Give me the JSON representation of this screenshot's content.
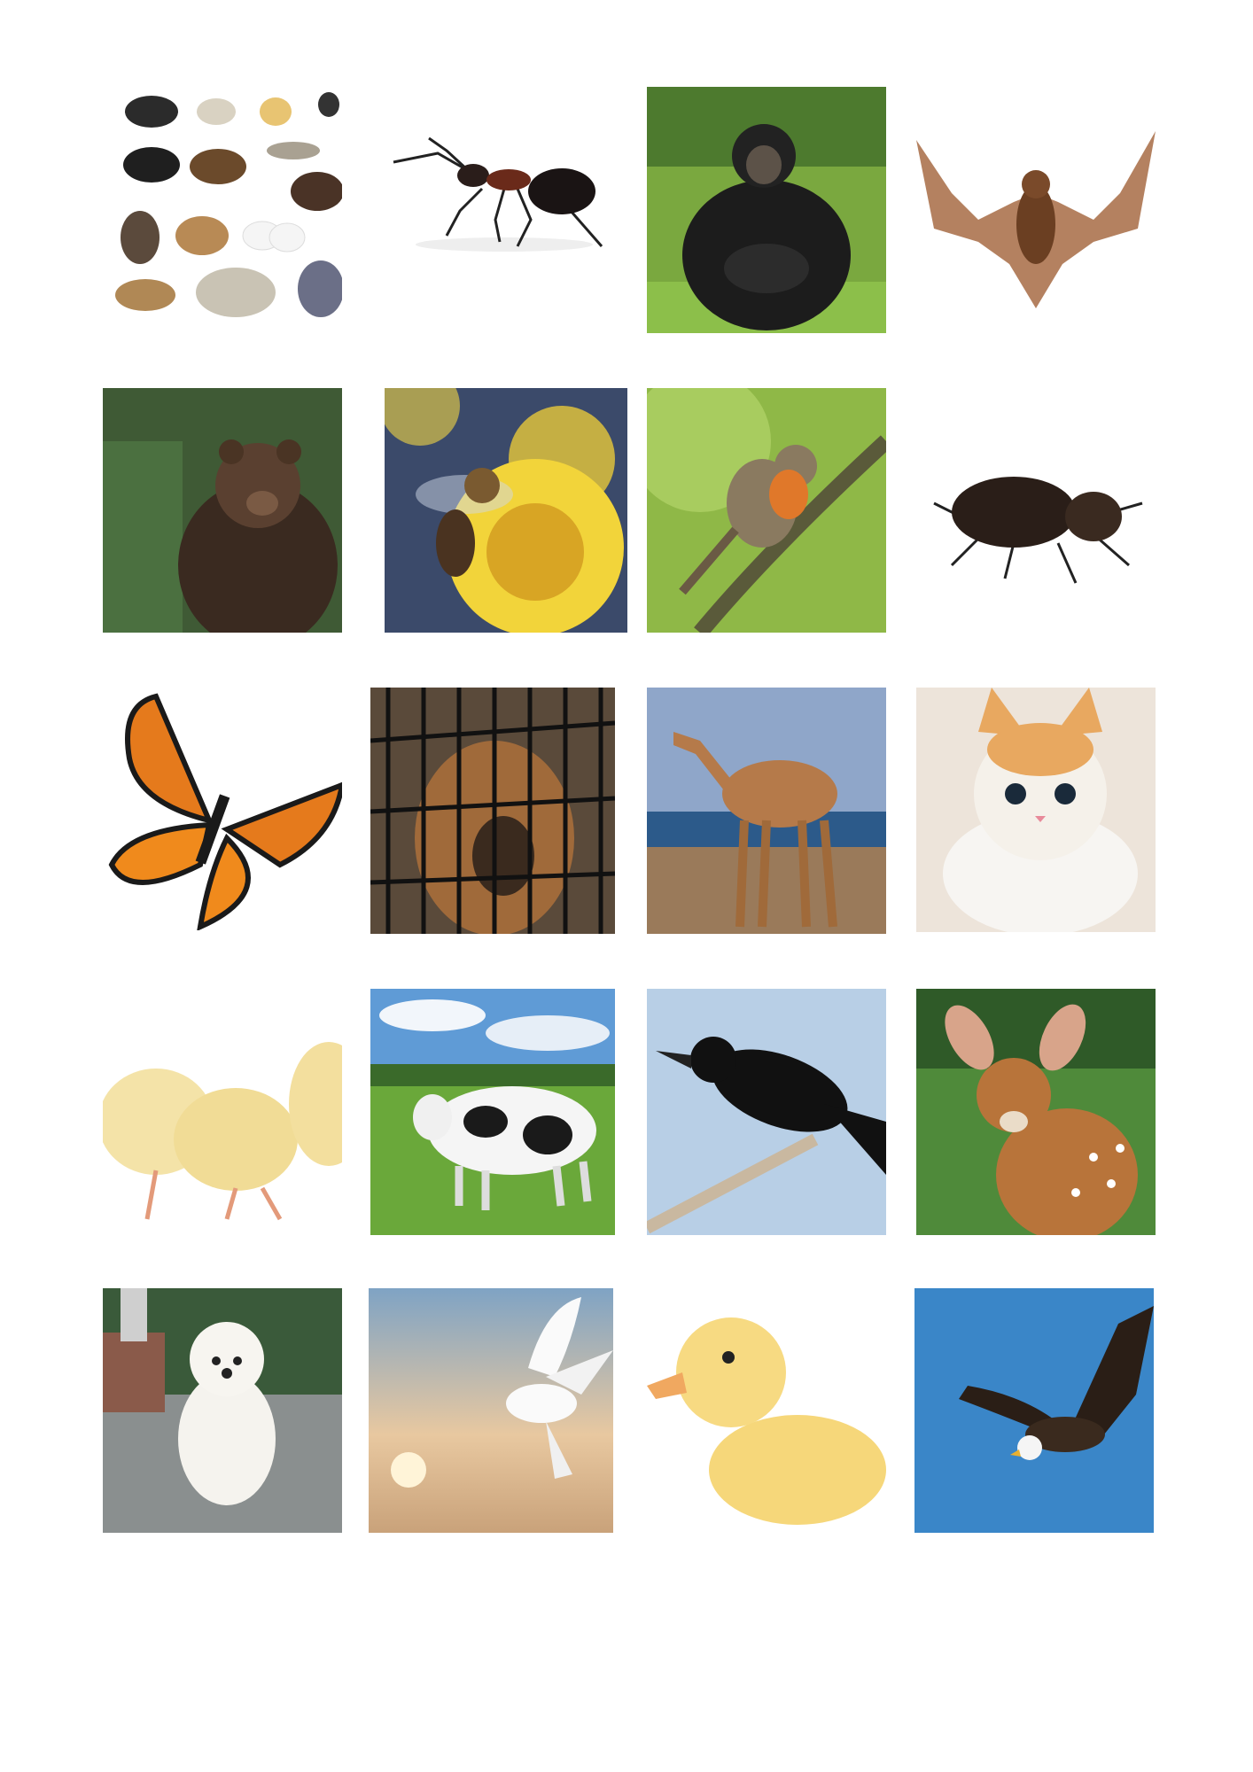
{
  "pictures": [
    {
      "subject": "assorted-animals",
      "background": "#ffffff"
    },
    {
      "subject": "ant",
      "background": "#ffffff"
    },
    {
      "subject": "chimpanzee",
      "background": "#7aa83f"
    },
    {
      "subject": "bat",
      "background": "#ffffff"
    },
    {
      "subject": "bear",
      "background": "#3f5a35"
    },
    {
      "subject": "bee",
      "background": "#3b4a6a"
    },
    {
      "subject": "bird",
      "background": "#8fb847"
    },
    {
      "subject": "beetle",
      "background": "#ffffff"
    },
    {
      "subject": "butterfly",
      "background": "#ffffff"
    },
    {
      "subject": "dog-in-cage",
      "background": "#5a4a3a"
    },
    {
      "subject": "camel",
      "background": "#8fa6c9"
    },
    {
      "subject": "kitten",
      "background": "#ede4da"
    },
    {
      "subject": "chicks",
      "background": "#ffffff"
    },
    {
      "subject": "cow",
      "background": "#5f9bd6"
    },
    {
      "subject": "crow",
      "background": "#b8cfe6"
    },
    {
      "subject": "deer",
      "background": "#4f8a3a"
    },
    {
      "subject": "puppy",
      "background": "#8a8f8f"
    },
    {
      "subject": "dove",
      "background": "#9ab3c9"
    },
    {
      "subject": "duckling",
      "background": "#ffffff"
    },
    {
      "subject": "eagle",
      "background": "#3a86c8"
    }
  ]
}
